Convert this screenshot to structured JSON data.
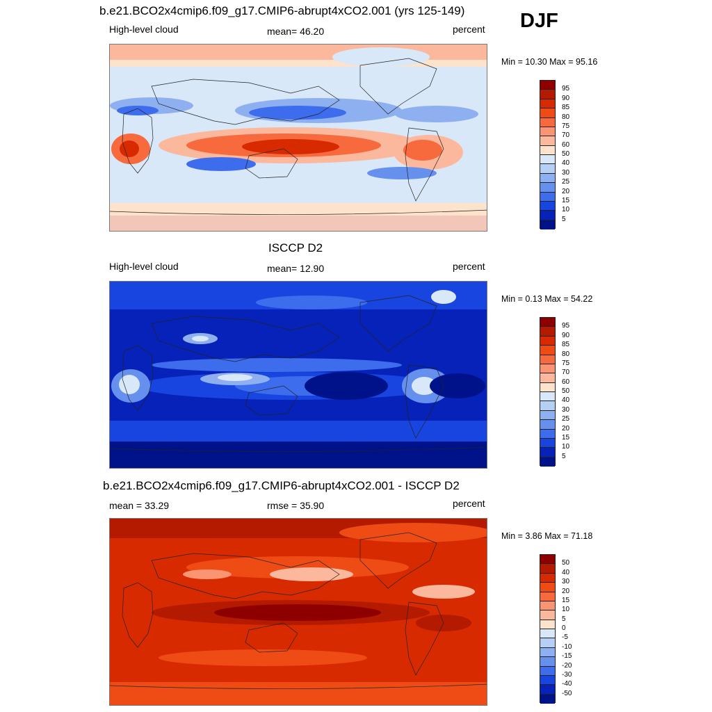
{
  "season": "DJF",
  "panels": [
    {
      "title": "b.e21.BCO2x4cmip6.f09_g17.CMIP6-abrupt4xCO2.001 (yrs 125-149)",
      "left_label": "High-level cloud",
      "center_label": "mean=  46.20",
      "right_label": "percent",
      "minmax": "Min =  10.30 Max =  95.16",
      "colorbar_labels": [
        "95",
        "90",
        "85",
        "80",
        "75",
        "70",
        "60",
        "50",
        "40",
        "30",
        "25",
        "20",
        "15",
        "10",
        "5"
      ],
      "colorbar_colors": [
        "#8e0000",
        "#b31a00",
        "#d72a00",
        "#ee4b15",
        "#f76a3d",
        "#fa9472",
        "#fcb89c",
        "#fde2cc",
        "#d9e8f8",
        "#b5cff5",
        "#8fb0f0",
        "#6690ee",
        "#3d6ced",
        "#1845df",
        "#0622b8",
        "#00128a"
      ],
      "style": "model"
    },
    {
      "title": "ISCCP D2",
      "left_label": "High-level cloud",
      "center_label": "mean=  12.90",
      "right_label": "percent",
      "minmax": "Min =   0.13 Max =  54.22",
      "colorbar_labels": [
        "95",
        "90",
        "85",
        "80",
        "75",
        "70",
        "60",
        "50",
        "40",
        "30",
        "25",
        "20",
        "15",
        "10",
        "5"
      ],
      "colorbar_colors": [
        "#8e0000",
        "#b31a00",
        "#d72a00",
        "#ee4b15",
        "#f76a3d",
        "#fa9472",
        "#fcb89c",
        "#fde2cc",
        "#d9e8f8",
        "#b5cff5",
        "#8fb0f0",
        "#6690ee",
        "#3d6ced",
        "#1845df",
        "#0622b8",
        "#00128a"
      ],
      "style": "obs"
    },
    {
      "title": "b.e21.BCO2x4cmip6.f09_g17.CMIP6-abrupt4xCO2.001 - ISCCP D2",
      "left_label": "mean =  33.29",
      "center_label": "rmse =  35.90",
      "right_label": "percent",
      "minmax": "Min =   3.86 Max =  71.18",
      "colorbar_labels": [
        "50",
        "40",
        "30",
        "20",
        "15",
        "10",
        "5",
        "0",
        "-5",
        "-10",
        "-15",
        "-20",
        "-30",
        "-40",
        "-50"
      ],
      "colorbar_colors": [
        "#8e0000",
        "#b31a00",
        "#d72a00",
        "#ee4b15",
        "#f76a3d",
        "#fa9472",
        "#fcb89c",
        "#fde2cc",
        "#d9e8f8",
        "#b5cff5",
        "#8fb0f0",
        "#6690ee",
        "#3d6ced",
        "#1845df",
        "#0622b8",
        "#00128a"
      ],
      "style": "diff"
    }
  ]
}
